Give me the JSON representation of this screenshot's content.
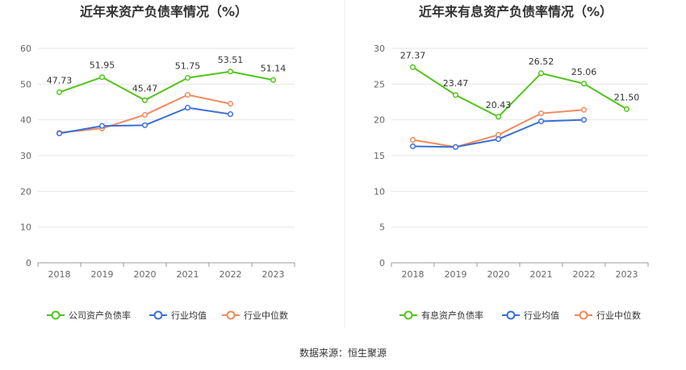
{
  "chart_data": [
    {
      "type": "line",
      "title": "近年来资产负债率情况（%）",
      "categories": [
        "2018",
        "2019",
        "2020",
        "2021",
        "2022",
        "2023"
      ],
      "ylim": [
        0,
        60
      ],
      "yticks": [
        0,
        10,
        20,
        30,
        40,
        50,
        60
      ],
      "grid": true,
      "legend_position": "bottom",
      "series": [
        {
          "name": "公司资产负债率",
          "color": "#52c41a",
          "values": [
            47.73,
            51.95,
            45.47,
            51.75,
            53.51,
            51.14
          ],
          "labels": [
            "47.73",
            "51.95",
            "45.47",
            "51.75",
            "53.51",
            "51.14"
          ]
        },
        {
          "name": "行业均值",
          "color": "#3b6fd6",
          "values": [
            36.2,
            38.3,
            38.5,
            43.4,
            41.6,
            null
          ]
        },
        {
          "name": "行业中位数",
          "color": "#f08a5d",
          "values": [
            36.4,
            37.6,
            41.4,
            47.0,
            44.5,
            null
          ]
        }
      ]
    },
    {
      "type": "line",
      "title": "近年来有息资产负债率情况（%）",
      "categories": [
        "2018",
        "2019",
        "2020",
        "2021",
        "2022",
        "2023"
      ],
      "ylim": [
        0,
        30
      ],
      "yticks": [
        0,
        5,
        10,
        15,
        20,
        25,
        30
      ],
      "grid": true,
      "legend_position": "bottom",
      "series": [
        {
          "name": "有息资产负债率",
          "color": "#52c41a",
          "values": [
            27.37,
            23.47,
            20.43,
            26.52,
            25.06,
            21.5
          ],
          "labels": [
            "27.37",
            "23.47",
            "20.43",
            "26.52",
            "25.06",
            "21.50"
          ]
        },
        {
          "name": "行业均值",
          "color": "#3b6fd6",
          "values": [
            16.3,
            16.2,
            17.3,
            19.8,
            20.0,
            null
          ]
        },
        {
          "name": "行业中位数",
          "color": "#f08a5d",
          "values": [
            17.2,
            16.2,
            17.9,
            20.9,
            21.4,
            null
          ]
        }
      ]
    }
  ],
  "footer": {
    "source": "数据来源：恒生聚源"
  }
}
